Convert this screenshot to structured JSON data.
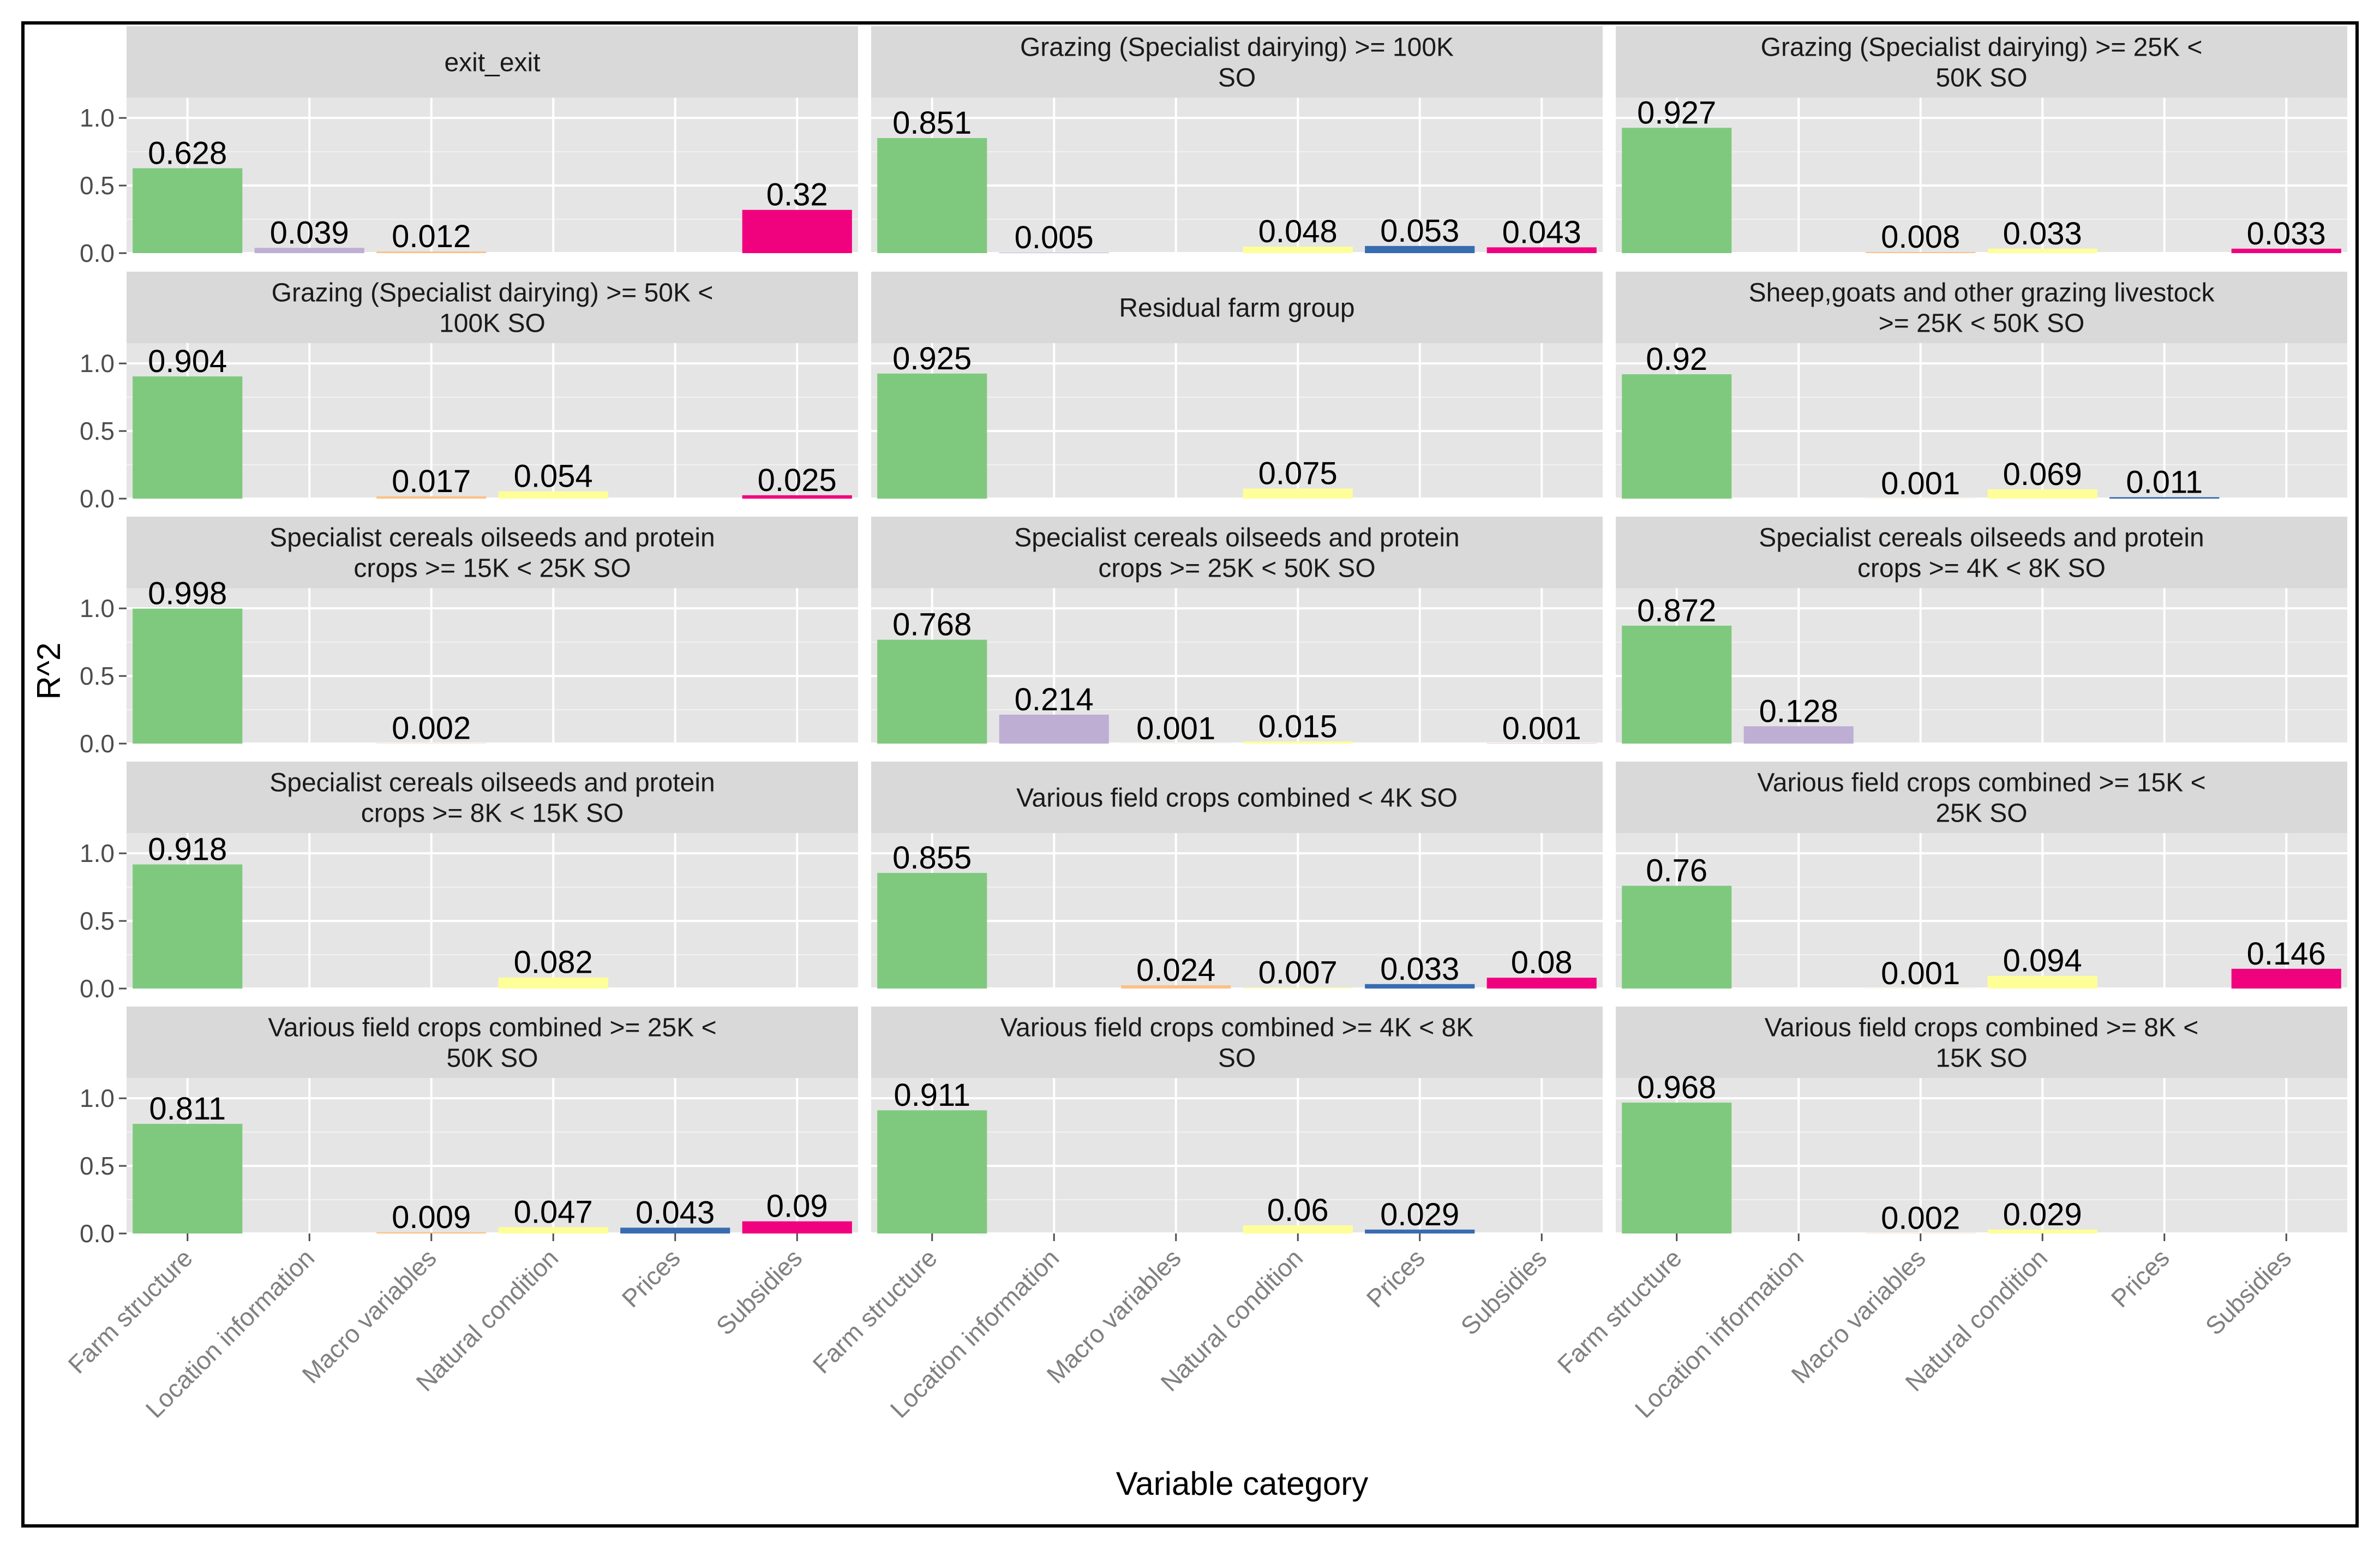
{
  "chart_data": {
    "type": "bar",
    "faceted": true,
    "layout": "5 rows x 3 columns",
    "xlabel": "Variable category",
    "ylabel": "R^2",
    "ylim": [
      0,
      1.15
    ],
    "yticks": [
      0,
      0.5,
      1
    ],
    "ytick_labels": [
      "0.0",
      "0.5",
      "1.0"
    ],
    "grid": true,
    "legend": "none",
    "categories": [
      "Farm structure",
      "Location information",
      "Macro variables",
      "Natural condition",
      "Prices",
      "Subsidies"
    ],
    "category_colors": {
      "Farm structure": "#7FC97F",
      "Location information": "#BEAED4",
      "Macro variables": "#FDC086",
      "Natural condition": "#FFFF99",
      "Prices": "#386CB0",
      "Subsidies": "#F0027F"
    },
    "panels": [
      {
        "title": [
          "exit_exit"
        ],
        "bars": [
          {
            "category": "Farm structure",
            "value": 0.628,
            "label": "0.628"
          },
          {
            "category": "Location information",
            "value": 0.039,
            "label": "0.039"
          },
          {
            "category": "Macro variables",
            "value": 0.012,
            "label": "0.012"
          },
          {
            "category": "Subsidies",
            "value": 0.32,
            "label": "0.32"
          }
        ]
      },
      {
        "title": [
          "Grazing (Specialist dairying) >= 100K",
          "SO"
        ],
        "bars": [
          {
            "category": "Farm structure",
            "value": 0.851,
            "label": "0.851"
          },
          {
            "category": "Location information",
            "value": 0.005,
            "label": "0.005"
          },
          {
            "category": "Natural condition",
            "value": 0.048,
            "label": "0.048"
          },
          {
            "category": "Prices",
            "value": 0.053,
            "label": "0.053"
          },
          {
            "category": "Subsidies",
            "value": 0.043,
            "label": "0.043"
          }
        ]
      },
      {
        "title": [
          "Grazing (Specialist dairying) >= 25K <",
          "50K SO"
        ],
        "bars": [
          {
            "category": "Farm structure",
            "value": 0.927,
            "label": "0.927"
          },
          {
            "category": "Macro variables",
            "value": 0.008,
            "label": "0.008"
          },
          {
            "category": "Natural condition",
            "value": 0.033,
            "label": "0.033"
          },
          {
            "category": "Subsidies",
            "value": 0.033,
            "label": "0.033"
          }
        ]
      },
      {
        "title": [
          "Grazing (Specialist dairying) >= 50K <",
          "100K SO"
        ],
        "bars": [
          {
            "category": "Farm structure",
            "value": 0.904,
            "label": "0.904"
          },
          {
            "category": "Macro variables",
            "value": 0.017,
            "label": "0.017"
          },
          {
            "category": "Natural condition",
            "value": 0.054,
            "label": "0.054"
          },
          {
            "category": "Subsidies",
            "value": 0.025,
            "label": "0.025"
          }
        ]
      },
      {
        "title": [
          "Residual farm group"
        ],
        "bars": [
          {
            "category": "Farm structure",
            "value": 0.925,
            "label": "0.925"
          },
          {
            "category": "Natural condition",
            "value": 0.075,
            "label": "0.075"
          }
        ]
      },
      {
        "title": [
          "Sheep,goats and other grazing livestock",
          ">= 25K < 50K SO"
        ],
        "bars": [
          {
            "category": "Farm structure",
            "value": 0.92,
            "label": "0.92"
          },
          {
            "category": "Macro variables",
            "value": 0.001,
            "label": "0.001"
          },
          {
            "category": "Natural condition",
            "value": 0.069,
            "label": "0.069"
          },
          {
            "category": "Prices",
            "value": 0.011,
            "label": "0.011"
          }
        ]
      },
      {
        "title": [
          "Specialist cereals oilseeds and protein",
          "crops >= 15K < 25K SO"
        ],
        "bars": [
          {
            "category": "Farm structure",
            "value": 0.998,
            "label": "0.998"
          },
          {
            "category": "Macro variables",
            "value": 0.002,
            "label": "0.002"
          }
        ]
      },
      {
        "title": [
          "Specialist cereals oilseeds and protein",
          "crops >= 25K < 50K SO"
        ],
        "bars": [
          {
            "category": "Farm structure",
            "value": 0.768,
            "label": "0.768"
          },
          {
            "category": "Location information",
            "value": 0.214,
            "label": "0.214"
          },
          {
            "category": "Macro variables",
            "value": 0.001,
            "label": "0.001"
          },
          {
            "category": "Natural condition",
            "value": 0.015,
            "label": "0.015"
          },
          {
            "category": "Subsidies",
            "value": 0.001,
            "label": "0.001"
          }
        ]
      },
      {
        "title": [
          "Specialist cereals oilseeds and protein",
          "crops >= 4K < 8K SO"
        ],
        "bars": [
          {
            "category": "Farm structure",
            "value": 0.872,
            "label": "0.872"
          },
          {
            "category": "Location information",
            "value": 0.128,
            "label": "0.128"
          }
        ]
      },
      {
        "title": [
          "Specialist cereals oilseeds and protein",
          "crops >= 8K < 15K SO"
        ],
        "bars": [
          {
            "category": "Farm structure",
            "value": 0.918,
            "label": "0.918"
          },
          {
            "category": "Natural condition",
            "value": 0.082,
            "label": "0.082"
          }
        ]
      },
      {
        "title": [
          "Various field crops combined < 4K SO"
        ],
        "bars": [
          {
            "category": "Farm structure",
            "value": 0.855,
            "label": "0.855"
          },
          {
            "category": "Macro variables",
            "value": 0.024,
            "label": "0.024"
          },
          {
            "category": "Natural condition",
            "value": 0.007,
            "label": "0.007"
          },
          {
            "category": "Prices",
            "value": 0.033,
            "label": "0.033"
          },
          {
            "category": "Subsidies",
            "value": 0.08,
            "label": "0.08"
          }
        ]
      },
      {
        "title": [
          "Various field crops combined >= 15K <",
          "25K SO"
        ],
        "bars": [
          {
            "category": "Farm structure",
            "value": 0.76,
            "label": "0.76"
          },
          {
            "category": "Macro variables",
            "value": 0.001,
            "label": "0.001"
          },
          {
            "category": "Natural condition",
            "value": 0.094,
            "label": "0.094"
          },
          {
            "category": "Subsidies",
            "value": 0.146,
            "label": "0.146"
          }
        ]
      },
      {
        "title": [
          "Various field crops combined >= 25K <",
          "50K SO"
        ],
        "bars": [
          {
            "category": "Farm structure",
            "value": 0.811,
            "label": "0.811"
          },
          {
            "category": "Macro variables",
            "value": 0.009,
            "label": "0.009"
          },
          {
            "category": "Natural condition",
            "value": 0.047,
            "label": "0.047"
          },
          {
            "category": "Prices",
            "value": 0.043,
            "label": "0.043"
          },
          {
            "category": "Subsidies",
            "value": 0.09,
            "label": "0.09"
          }
        ]
      },
      {
        "title": [
          "Various field crops combined >= 4K < 8K",
          "SO"
        ],
        "bars": [
          {
            "category": "Farm structure",
            "value": 0.911,
            "label": "0.911"
          },
          {
            "category": "Natural condition",
            "value": 0.06,
            "label": "0.06"
          },
          {
            "category": "Prices",
            "value": 0.029,
            "label": "0.029"
          }
        ]
      },
      {
        "title": [
          "Various field crops combined >= 8K <",
          "15K SO"
        ],
        "bars": [
          {
            "category": "Farm structure",
            "value": 0.968,
            "label": "0.968"
          },
          {
            "category": "Macro variables",
            "value": 0.002,
            "label": "0.002"
          },
          {
            "category": "Natural condition",
            "value": 0.029,
            "label": "0.029"
          }
        ]
      }
    ]
  }
}
